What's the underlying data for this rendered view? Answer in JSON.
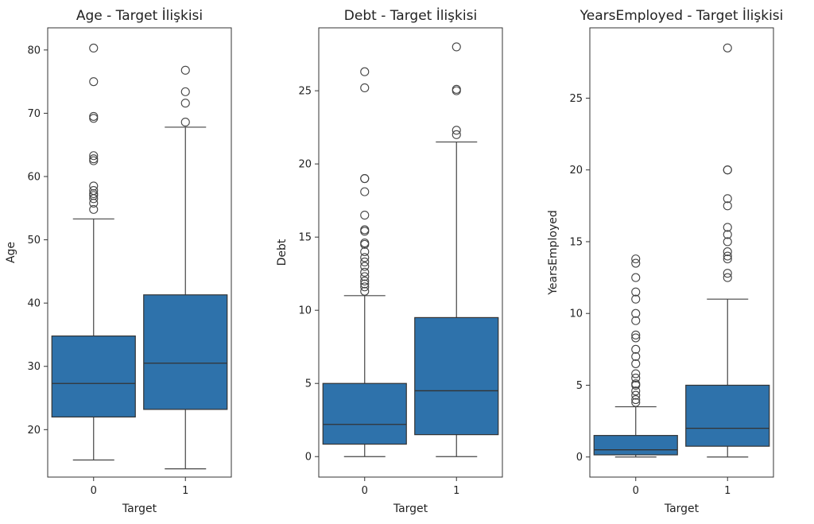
{
  "chart_data": [
    {
      "type": "box",
      "title": "Age - Target İlişkisi",
      "xlabel": "Target",
      "ylabel": "Age",
      "categories": [
        "0",
        "1"
      ],
      "ylim": [
        12.5,
        83.5
      ],
      "yticks": [
        20,
        30,
        40,
        50,
        60,
        70,
        80
      ],
      "color": "#2e72ab",
      "boxes": [
        {
          "category": "0",
          "whislo": 15.2,
          "q1": 22.0,
          "median": 27.3,
          "q3": 34.8,
          "whishi": 53.3,
          "fliers": [
            54.8,
            55.8,
            56.5,
            57.0,
            57.3,
            57.8,
            58.5,
            62.5,
            62.8,
            63.3,
            69.2,
            69.5,
            75.0,
            80.3
          ]
        },
        {
          "category": "1",
          "whislo": 13.8,
          "q1": 23.2,
          "median": 30.5,
          "q3": 41.3,
          "whishi": 67.8,
          "fliers": [
            68.6,
            71.6,
            73.4,
            76.8
          ]
        }
      ]
    },
    {
      "type": "box",
      "title": "Debt - Target İlişkisi",
      "xlabel": "Target",
      "ylabel": "Debt",
      "categories": [
        "0",
        "1"
      ],
      "ylim": [
        -1.4,
        29.3
      ],
      "yticks": [
        0,
        5,
        10,
        15,
        20,
        25
      ],
      "color": "#2e72ab",
      "boxes": [
        {
          "category": "0",
          "whislo": 0.0,
          "q1": 0.85,
          "median": 2.2,
          "q3": 5.0,
          "whishi": 11.0,
          "fliers": [
            11.3,
            11.6,
            11.8,
            12.0,
            12.3,
            12.6,
            13.0,
            13.3,
            13.6,
            14.0,
            14.5,
            14.6,
            15.4,
            15.5,
            16.5,
            18.1,
            19.0,
            19.0,
            25.2,
            26.3
          ]
        },
        {
          "category": "1",
          "whislo": 0.0,
          "q1": 1.5,
          "median": 4.5,
          "q3": 9.5,
          "whishi": 21.5,
          "fliers": [
            22.0,
            22.3,
            25.0,
            25.1,
            28.0
          ]
        }
      ]
    },
    {
      "type": "box",
      "title": "YearsEmployed - Target İlişkisi",
      "xlabel": "Target",
      "ylabel": "YearsEmployed",
      "categories": [
        "0",
        "1"
      ],
      "ylim": [
        -1.4,
        29.9
      ],
      "yticks": [
        0,
        5,
        10,
        15,
        20,
        25
      ],
      "color": "#2e72ab",
      "boxes": [
        {
          "category": "0",
          "whislo": 0.0,
          "q1": 0.15,
          "median": 0.5,
          "q3": 1.5,
          "whishi": 3.5,
          "fliers": [
            3.8,
            4.0,
            4.3,
            4.6,
            5.0,
            5.1,
            5.5,
            5.8,
            6.5,
            7.0,
            7.5,
            8.3,
            8.5,
            9.5,
            10.0,
            11.0,
            11.5,
            12.5,
            13.5,
            13.8
          ]
        },
        {
          "category": "1",
          "whislo": 0.0,
          "q1": 0.75,
          "median": 2.0,
          "q3": 5.0,
          "whishi": 11.0,
          "fliers": [
            12.5,
            12.8,
            13.8,
            14.0,
            14.3,
            15.0,
            15.5,
            16.0,
            17.5,
            18.0,
            20.0,
            20.0,
            28.5
          ]
        }
      ]
    }
  ]
}
